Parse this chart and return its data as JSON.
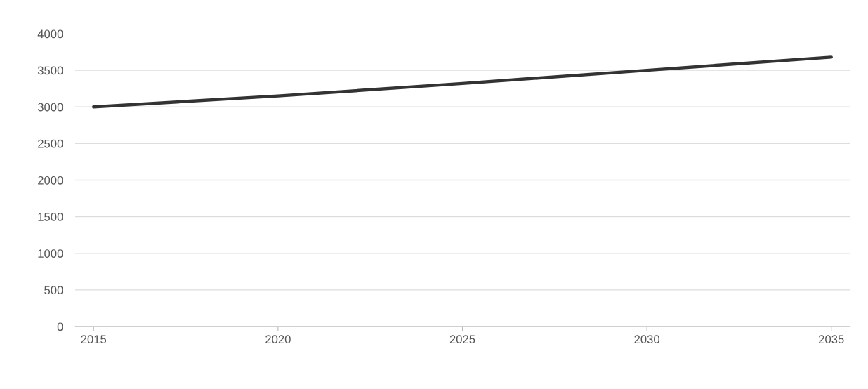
{
  "chart_data": {
    "type": "line",
    "x": [
      2015,
      2020,
      2025,
      2030,
      2035
    ],
    "series": [
      {
        "color": "#333333",
        "values": [
          3000,
          3150,
          3320,
          3500,
          3680
        ]
      }
    ],
    "xlim": [
      2014.5,
      2035.5
    ],
    "xticks": [
      2015,
      2020,
      2025,
      2030,
      2035
    ],
    "ylim": [
      0,
      4000
    ],
    "yticks": [
      0,
      500,
      1000,
      1500,
      2000,
      2500,
      3000,
      3500,
      4000
    ],
    "grid": "y",
    "legend": false
  }
}
